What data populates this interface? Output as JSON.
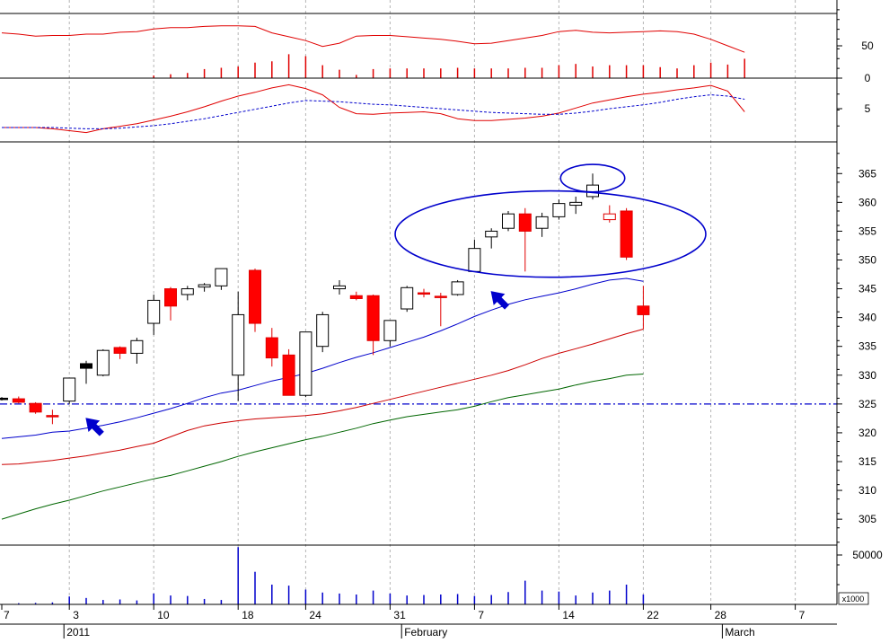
{
  "chart_data": [
    {
      "panel": "oscillator",
      "type": "line",
      "ylim": [
        0,
        100
      ],
      "yticks": [
        0,
        50
      ],
      "series": [
        {
          "color": "#e00000",
          "values": [
            70,
            68,
            65,
            66,
            66,
            68,
            68,
            71,
            72,
            76,
            78,
            78,
            80,
            81,
            81,
            80,
            70,
            64,
            58,
            49,
            54,
            65,
            66,
            66,
            64,
            62,
            60,
            57,
            53,
            54,
            58,
            62,
            66,
            72,
            74,
            71,
            70,
            71,
            72,
            73,
            72,
            68,
            60,
            50,
            40
          ]
        },
        {
          "color": "#e00000",
          "style": "bar",
          "values": [
            0,
            0,
            0,
            0,
            0,
            0,
            0,
            0,
            0,
            4,
            6,
            8,
            14,
            16,
            18,
            24,
            26,
            37,
            34,
            20,
            13,
            5,
            14,
            15,
            15,
            15,
            15,
            16,
            15,
            15,
            15,
            16,
            16,
            20,
            22,
            18,
            20,
            20,
            20,
            17,
            15,
            20,
            24,
            21,
            30
          ]
        }
      ]
    },
    {
      "panel": "macd",
      "type": "line",
      "yticks": [
        5
      ],
      "series": [
        {
          "color": "#e00000",
          "values": [
            2.0,
            2.0,
            2.0,
            1.8,
            1.5,
            1.2,
            1.8,
            2.2,
            2.6,
            3.2,
            3.8,
            4.5,
            5.3,
            6.2,
            7.0,
            7.6,
            8.3,
            8.8,
            8.2,
            7.2,
            5.2,
            4.2,
            4.1,
            4.3,
            4.4,
            4.5,
            4.2,
            3.4,
            3.1,
            3.1,
            3.3,
            3.5,
            3.8,
            4.3,
            5.1,
            5.9,
            6.4,
            6.9,
            7.3,
            7.6,
            8.0,
            8.3,
            8.7,
            7.8,
            4.5
          ]
        },
        {
          "color": "#0000cc",
          "dash": "3,2",
          "values": [
            2.0,
            2.0,
            2.0,
            2.0,
            1.9,
            1.8,
            1.8,
            1.9,
            2.1,
            2.3,
            2.6,
            3.0,
            3.4,
            3.9,
            4.4,
            4.9,
            5.4,
            5.9,
            6.3,
            6.2,
            6.1,
            5.9,
            5.7,
            5.6,
            5.4,
            5.2,
            5.0,
            4.8,
            4.6,
            4.4,
            4.3,
            4.2,
            4.1,
            4.1,
            4.3,
            4.6,
            5.0,
            5.3,
            5.6,
            6.0,
            6.5,
            6.9,
            7.2,
            7.0,
            6.5
          ]
        }
      ]
    },
    {
      "panel": "price",
      "type": "candlestick",
      "ylim": [
        300.5,
        370.5
      ],
      "yticks": [
        305,
        310,
        315,
        320,
        325,
        330,
        335,
        340,
        345,
        350,
        355,
        360,
        365
      ],
      "x_tick_labels": [
        {
          "day": "7",
          "index": 0
        },
        {
          "day": "3",
          "index": 4
        },
        {
          "day": "10",
          "index": 9
        },
        {
          "day": "18",
          "index": 14
        },
        {
          "day": "24",
          "index": 18
        },
        {
          "day": "31",
          "index": 23
        },
        {
          "day": "7",
          "index": 28
        },
        {
          "day": "14",
          "index": 33
        },
        {
          "day": "22",
          "index": 38
        },
        {
          "day": "28",
          "index": 42
        },
        {
          "day": "7",
          "index": 47
        }
      ],
      "period_labels": [
        {
          "text": "2011",
          "index": 4
        },
        {
          "text": "February",
          "index": 24
        },
        {
          "text": "March",
          "index": 43
        }
      ],
      "candles": [
        {
          "o": 325.8,
          "h": 326.2,
          "l": 325.6,
          "c": 326.0,
          "color": "black"
        },
        {
          "o": 325.9,
          "h": 326.3,
          "l": 325.1,
          "c": 325.3,
          "color": "red"
        },
        {
          "o": 325.1,
          "h": 325.3,
          "l": 323.3,
          "c": 323.6,
          "color": "red"
        },
        {
          "o": 323.0,
          "h": 324.0,
          "l": 321.5,
          "c": 322.8,
          "color": "red"
        },
        {
          "o": 325.5,
          "h": 329.5,
          "l": 325.0,
          "c": 329.5,
          "color": "white"
        },
        {
          "o": 332.0,
          "h": 332.5,
          "l": 328.5,
          "c": 331.2,
          "color": "black"
        },
        {
          "o": 330.0,
          "h": 334.5,
          "l": 329.8,
          "c": 334.3,
          "color": "white"
        },
        {
          "o": 334.8,
          "h": 335.0,
          "l": 332.8,
          "c": 333.8,
          "color": "red"
        },
        {
          "o": 333.8,
          "h": 336.5,
          "l": 332.0,
          "c": 336.0,
          "color": "white"
        },
        {
          "o": 339.0,
          "h": 344.0,
          "l": 337.0,
          "c": 343.0,
          "color": "white"
        },
        {
          "o": 345.0,
          "h": 345.3,
          "l": 339.5,
          "c": 342.0,
          "color": "red"
        },
        {
          "o": 344.0,
          "h": 345.5,
          "l": 343.0,
          "c": 345.0,
          "color": "white"
        },
        {
          "o": 345.3,
          "h": 346.0,
          "l": 344.5,
          "c": 345.7,
          "color": "white"
        },
        {
          "o": 345.5,
          "h": 348.5,
          "l": 344.8,
          "c": 348.5,
          "color": "white"
        },
        {
          "o": 330.0,
          "h": 344.5,
          "l": 325.5,
          "c": 340.5,
          "color": "white"
        },
        {
          "o": 348.2,
          "h": 348.5,
          "l": 337.5,
          "c": 339.0,
          "color": "red"
        },
        {
          "o": 336.5,
          "h": 338.2,
          "l": 331.5,
          "c": 333.0,
          "color": "red"
        },
        {
          "o": 333.5,
          "h": 334.5,
          "l": 326.5,
          "c": 326.5,
          "color": "red"
        },
        {
          "o": 326.5,
          "h": 337.5,
          "l": 326.2,
          "c": 337.5,
          "color": "white"
        },
        {
          "o": 335.0,
          "h": 341.0,
          "l": 334.0,
          "c": 340.5,
          "color": "white"
        },
        {
          "o": 345.0,
          "h": 346.5,
          "l": 344.0,
          "c": 345.5,
          "color": "white"
        },
        {
          "o": 343.8,
          "h": 344.5,
          "l": 343.0,
          "c": 343.3,
          "color": "red"
        },
        {
          "o": 343.8,
          "h": 344.0,
          "l": 333.5,
          "c": 336.0,
          "color": "red"
        },
        {
          "o": 336.0,
          "h": 339.5,
          "l": 335.0,
          "c": 339.5,
          "color": "white"
        },
        {
          "o": 341.5,
          "h": 345.5,
          "l": 341.0,
          "c": 345.2,
          "color": "white"
        },
        {
          "o": 344.3,
          "h": 345.0,
          "l": 343.5,
          "c": 344.3,
          "color": "red"
        },
        {
          "o": 343.7,
          "h": 344.3,
          "l": 338.5,
          "c": 343.5,
          "color": "red"
        },
        {
          "o": 344.0,
          "h": 346.5,
          "l": 343.8,
          "c": 346.2,
          "color": "white"
        },
        {
          "o": 348.0,
          "h": 353.5,
          "l": 348.0,
          "c": 352.0,
          "color": "white"
        },
        {
          "o": 354.0,
          "h": 355.5,
          "l": 352.0,
          "c": 355.0,
          "color": "white"
        },
        {
          "o": 355.5,
          "h": 358.5,
          "l": 355.0,
          "c": 358.0,
          "color": "white"
        },
        {
          "o": 358.0,
          "h": 359.0,
          "l": 348.0,
          "c": 355.0,
          "color": "red"
        },
        {
          "o": 355.5,
          "h": 358.2,
          "l": 354.0,
          "c": 357.5,
          "color": "white"
        },
        {
          "o": 357.5,
          "h": 360.5,
          "l": 357.0,
          "c": 359.8,
          "color": "white"
        },
        {
          "o": 359.5,
          "h": 361.0,
          "l": 358.0,
          "c": 360.0,
          "color": "white"
        },
        {
          "o": 361.0,
          "h": 365.0,
          "l": 360.5,
          "c": 363.0,
          "color": "white"
        },
        {
          "o": 358.0,
          "h": 359.5,
          "l": 356.5,
          "c": 357.0,
          "color": "hollow-red"
        },
        {
          "o": 358.5,
          "h": 359.0,
          "l": 350.0,
          "c": 350.5,
          "color": "red"
        },
        {
          "o": 342.0,
          "h": 345.5,
          "l": 338.0,
          "c": 340.5,
          "color": "red"
        }
      ],
      "moving_averages": [
        {
          "color": "#0000cc",
          "values": [
            319.0,
            319.3,
            319.6,
            320.1,
            320.3,
            320.8,
            321.3,
            321.9,
            322.6,
            323.4,
            324.2,
            325.1,
            326.1,
            326.9,
            327.4,
            328.2,
            329.0,
            329.6,
            330.3,
            331.2,
            332.2,
            333.1,
            333.9,
            334.8,
            335.7,
            336.6,
            337.7,
            338.9,
            340.2,
            341.3,
            342.3,
            343.1,
            343.7,
            344.3,
            345.0,
            345.8,
            346.5,
            346.8,
            346.3
          ]
        },
        {
          "color": "#cc0000",
          "values": [
            314.5,
            314.6,
            314.9,
            315.2,
            315.6,
            316.0,
            316.5,
            317.0,
            317.6,
            318.2,
            319.3,
            320.4,
            321.2,
            321.7,
            322.1,
            322.4,
            322.6,
            322.8,
            323.0,
            323.3,
            323.8,
            324.4,
            325.1,
            325.8,
            326.5,
            327.2,
            327.9,
            328.6,
            329.3,
            330.0,
            330.8,
            331.8,
            332.9,
            333.8,
            334.6,
            335.4,
            336.3,
            337.2,
            338.0
          ]
        },
        {
          "color": "#006600",
          "values": [
            305.0,
            305.9,
            306.8,
            307.6,
            308.3,
            309.1,
            309.9,
            310.6,
            311.3,
            312.0,
            312.6,
            313.4,
            314.2,
            315.0,
            315.9,
            316.7,
            317.4,
            318.1,
            318.8,
            319.4,
            320.1,
            320.8,
            321.6,
            322.2,
            322.8,
            323.2,
            323.6,
            324.0,
            324.6,
            325.4,
            326.1,
            326.6,
            327.1,
            327.6,
            328.3,
            328.9,
            329.4,
            330.0,
            330.2
          ]
        }
      ],
      "reference_line": {
        "y": 325,
        "color": "#0000cc",
        "style": "dash-dot"
      },
      "annotations": [
        {
          "shape": "ellipse",
          "color": "#0000cc",
          "cx_index": 32.5,
          "cy": 354.5,
          "rx_bars": 9.2,
          "ry": 7.5
        },
        {
          "shape": "ellipse",
          "color": "#0000cc",
          "cx_index": 35.0,
          "cy": 364.2,
          "rx_bars": 1.9,
          "ry": 2.4
        },
        {
          "shape": "arrow",
          "color": "#0000cc",
          "index": 5,
          "y": 322.5,
          "direction": "up-left"
        },
        {
          "shape": "arrow",
          "color": "#0000cc",
          "index": 29,
          "y": 344.5,
          "direction": "up-left"
        }
      ]
    },
    {
      "panel": "volume",
      "type": "bar",
      "color": "#0000cc",
      "yticks": [
        50000
      ],
      "unit_label": "x1000",
      "values": [
        300,
        1200,
        1500,
        2000,
        8000,
        6500,
        4500,
        5000,
        4000,
        11000,
        9000,
        8500,
        5500,
        4500,
        58000,
        33000,
        20000,
        19000,
        15000,
        12000,
        11000,
        10000,
        14000,
        11000,
        9000,
        9500,
        10000,
        10500,
        8500,
        9500,
        12500,
        24000,
        14000,
        13000,
        9000,
        12000,
        14000,
        20000,
        10000
      ]
    }
  ]
}
